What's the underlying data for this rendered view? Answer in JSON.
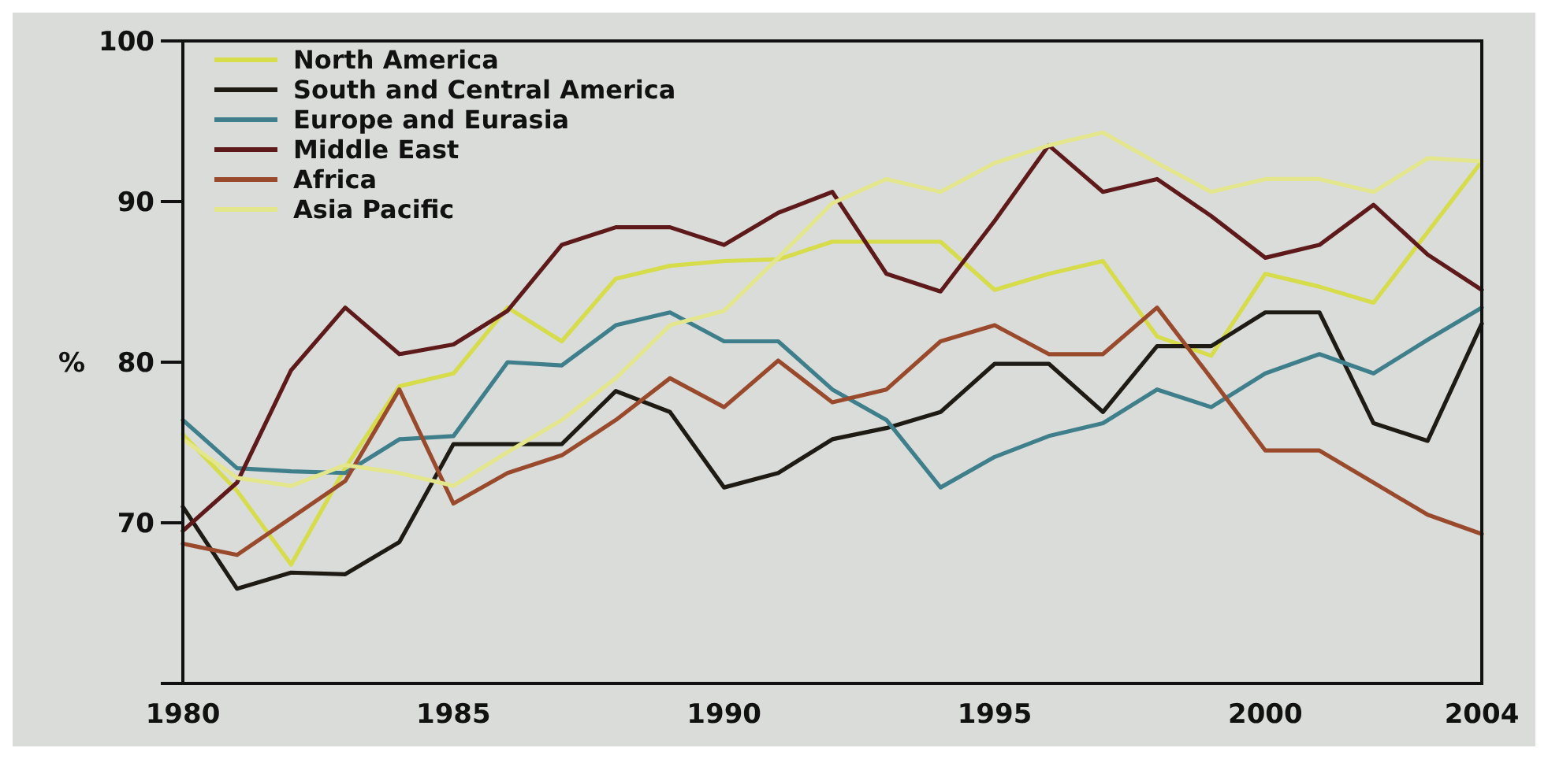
{
  "chart_data": {
    "type": "line",
    "ylabel": "%",
    "x": [
      1980,
      1981,
      1982,
      1983,
      1984,
      1985,
      1986,
      1987,
      1988,
      1989,
      1990,
      1991,
      1992,
      1993,
      1994,
      1995,
      1996,
      1997,
      1998,
      1999,
      2000,
      2001,
      2002,
      2003,
      2004
    ],
    "xlim": [
      1980,
      2004
    ],
    "xticks": [
      1980,
      1985,
      1990,
      1995,
      2000,
      2004
    ],
    "ylim": [
      60,
      100
    ],
    "yticks": [
      {
        "value": 60,
        "label": null
      },
      70,
      80,
      90,
      100
    ],
    "grid": false,
    "legend": "top left",
    "marker": "none",
    "line_style": "solid",
    "series": [
      {
        "name": "North America",
        "color": "#d6dc4a",
        "values": [
          75.5,
          72,
          67.4,
          73.4,
          78.5,
          79.3,
          83.4,
          81.3,
          85.2,
          86,
          86.3,
          86.4,
          87.5,
          87.5,
          87.5,
          84.5,
          85.5,
          86.3,
          81.6,
          80.4,
          85.5,
          84.7,
          83.7,
          88.1,
          92.5
        ]
      },
      {
        "name": "South and Central America",
        "color": "#1e1a14",
        "values": [
          71,
          65.9,
          66.9,
          66.8,
          68.8,
          74.9,
          74.9,
          74.9,
          78.2,
          76.9,
          72.2,
          73.1,
          75.2,
          75.9,
          76.9,
          79.9,
          79.9,
          76.9,
          81,
          81,
          83.1,
          83.1,
          76.2,
          75.1,
          82.4
        ]
      },
      {
        "name": "Europe and Eurasia",
        "color": "#3f7f8c",
        "values": [
          76.4,
          73.4,
          73.2,
          73.1,
          75.2,
          75.4,
          80,
          79.8,
          82.3,
          83.1,
          81.3,
          81.3,
          78.3,
          76.4,
          72.2,
          74.1,
          75.4,
          76.2,
          78.3,
          77.2,
          79.3,
          80.5,
          79.3,
          81.4,
          83.4
        ]
      },
      {
        "name": "Middle East",
        "color": "#5e1a1a",
        "values": [
          69.5,
          72.5,
          79.5,
          83.4,
          80.5,
          81.1,
          83.2,
          87.3,
          88.4,
          88.4,
          87.3,
          89.3,
          90.6,
          85.5,
          84.4,
          88.8,
          93.5,
          90.6,
          91.4,
          89.1,
          86.5,
          87.3,
          89.8,
          86.7,
          84.5
        ]
      },
      {
        "name": "Africa",
        "color": "#9a4a2c",
        "values": [
          68.7,
          68,
          70.3,
          72.6,
          78.3,
          71.2,
          73.1,
          74.2,
          76.4,
          79,
          77.2,
          80.1,
          77.5,
          78.3,
          81.3,
          82.3,
          80.5,
          80.5,
          83.4,
          79,
          74.5,
          74.5,
          72.5,
          70.5,
          69.3
        ]
      },
      {
        "name": "Asia Pacific",
        "color": "#e3e68c",
        "values": [
          75.2,
          72.8,
          72.3,
          73.6,
          73.1,
          72.3,
          74.4,
          76.4,
          79,
          82.3,
          83.2,
          86.5,
          89.9,
          91.4,
          90.6,
          92.4,
          93.5,
          94.3,
          92.4,
          90.6,
          91.4,
          91.4,
          90.6,
          92.7,
          92.5
        ]
      }
    ]
  }
}
